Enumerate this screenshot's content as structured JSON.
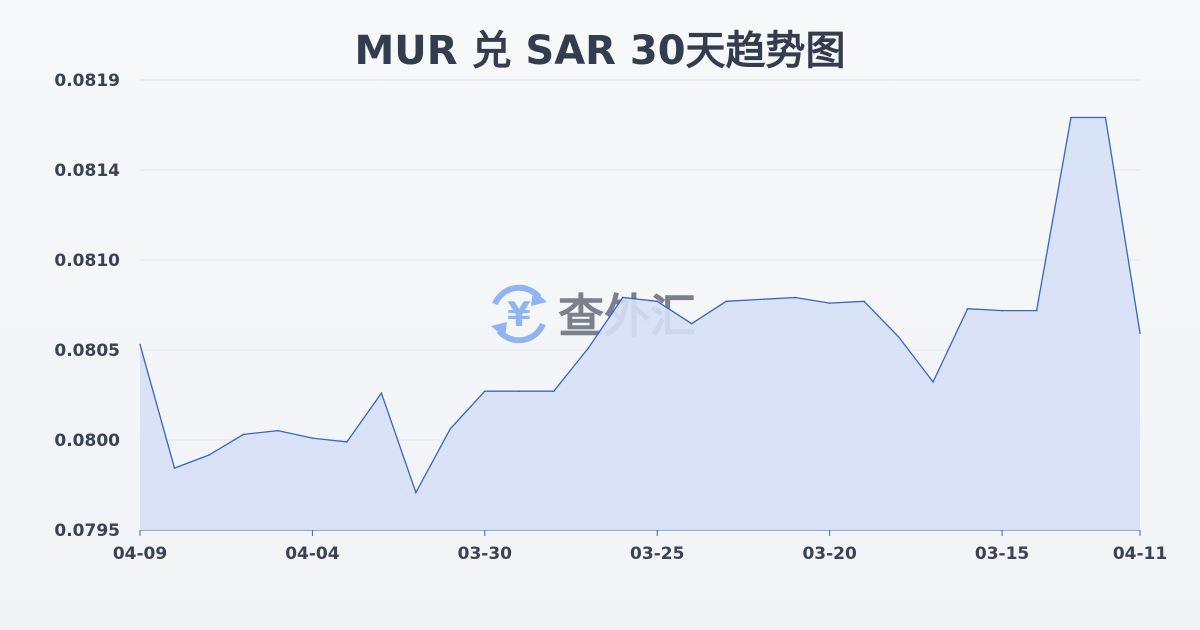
{
  "chart_data": {
    "type": "area",
    "title": "MUR 兑 SAR 30天趋势图",
    "xlabel": "",
    "ylabel": "",
    "ylim": [
      0.0795,
      0.0819
    ],
    "y_ticks": [
      "0.0795",
      "0.0800",
      "0.0805",
      "0.0810",
      "0.0814",
      "0.0819"
    ],
    "x_ticks": [
      {
        "index": 0,
        "label": "04-09"
      },
      {
        "index": 5,
        "label": "04-04"
      },
      {
        "index": 10,
        "label": "03-30"
      },
      {
        "index": 15,
        "label": "03-25"
      },
      {
        "index": 20,
        "label": "03-20"
      },
      {
        "index": 25,
        "label": "03-15"
      },
      {
        "index": 29,
        "label": "04-11"
      }
    ],
    "values": [
      0.08049,
      0.07983,
      0.0799,
      0.08001,
      0.08003,
      0.07999,
      0.07997,
      0.08023,
      0.0797,
      0.08004,
      0.08024,
      0.08024,
      0.08024,
      0.08047,
      0.08074,
      0.08072,
      0.0806,
      0.08072,
      0.08073,
      0.08074,
      0.08071,
      0.08072,
      0.08053,
      0.08029,
      0.08068,
      0.08067,
      0.08067,
      0.0817,
      0.0817,
      0.08055
    ],
    "grid": true,
    "legend": "none",
    "colors": {
      "line": "#3366cc",
      "fill": "#d6e0f5",
      "grid": "#e3e5ea"
    }
  },
  "watermark": {
    "text": "查外汇",
    "icon": "yen-exchange-icon",
    "icon_color": "#8fb6f2"
  }
}
